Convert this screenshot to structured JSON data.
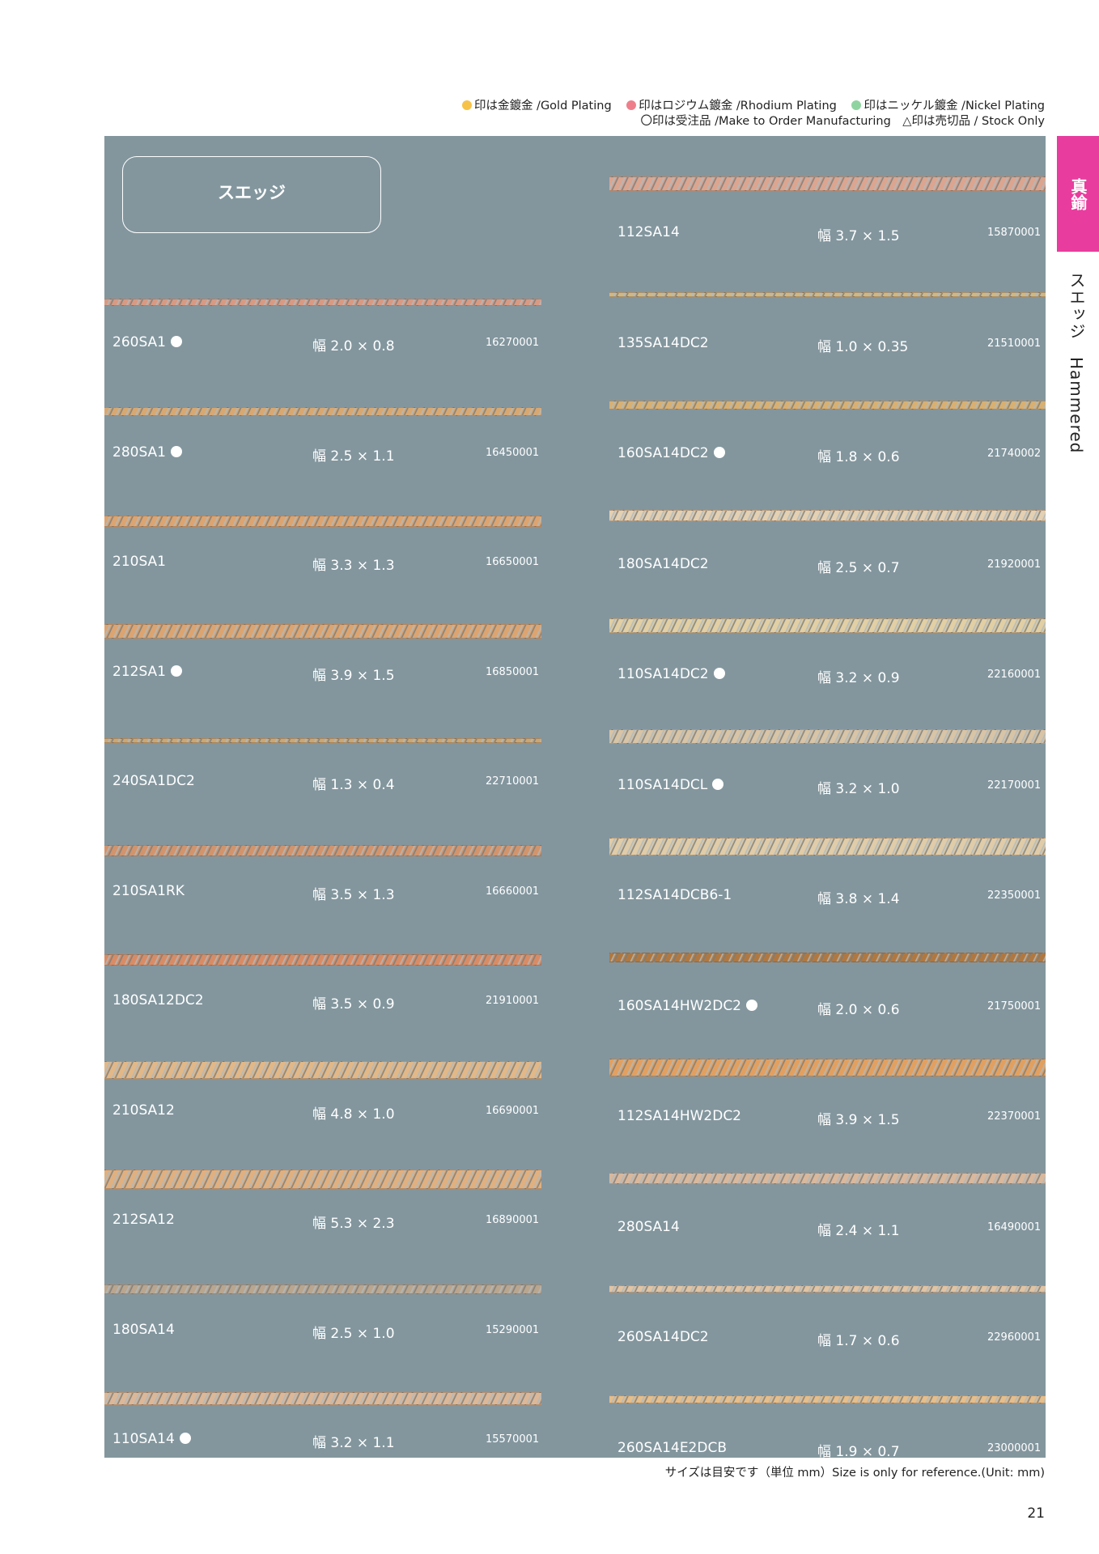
{
  "legend": {
    "line1": [
      {
        "color": "#f6c248",
        "text": "印は金鍍金 /Gold Plating"
      },
      {
        "color": "#ee7f8a",
        "text": "印はロジウム鍍金 /Rhodium Plating"
      },
      {
        "color": "#8fd4a0",
        "text": "印はニッケル鍍金 /Nickel Plating"
      }
    ],
    "line2": "〇印は受注品 /Make to Order Manufacturing　△印は売切品 / Stock Only"
  },
  "section_title": "スエッジ",
  "side_tab": "真鍮",
  "side_label": "スエッジ　Hammered",
  "left_column": [
    {
      "name": "260SA1",
      "dot": true,
      "size": "幅 2.0 × 0.8",
      "code": "16270001",
      "color": "#d89a83",
      "thickness": 9
    },
    {
      "name": "280SA1",
      "dot": true,
      "size": "幅 2.5 × 1.1",
      "code": "16450001",
      "color": "#d8a872",
      "thickness": 11
    },
    {
      "name": "210SA1",
      "dot": false,
      "size": "幅 3.3 × 1.3",
      "code": "16650001",
      "color": "#dca470",
      "thickness": 14
    },
    {
      "name": "212SA1",
      "dot": true,
      "size": "幅 3.9 × 1.5",
      "code": "16850001",
      "color": "#dca470",
      "thickness": 18
    },
    {
      "name": "240SA1DC2",
      "dot": false,
      "size": "幅 1.3 × 0.4",
      "code": "22710001",
      "color": "#c8a878",
      "thickness": 6
    },
    {
      "name": "210SA1RK",
      "dot": false,
      "size": "幅 3.5 × 1.3",
      "code": "16660001",
      "color": "#d2946c",
      "thickness": 14
    },
    {
      "name": "180SA12DC2",
      "dot": false,
      "size": "幅 3.5 × 0.9",
      "code": "21910001",
      "color": "#d88c66",
      "thickness": 14
    },
    {
      "name": "210SA12",
      "dot": false,
      "size": "幅 4.8 × 1.0",
      "code": "16690001",
      "color": "#e2b888",
      "thickness": 22
    },
    {
      "name": "212SA12",
      "dot": false,
      "size": "幅 5.3 × 2.3",
      "code": "16890001",
      "color": "#e0b080",
      "thickness": 24
    },
    {
      "name": "180SA14",
      "dot": false,
      "size": "幅 2.5 × 1.0",
      "code": "15290001",
      "color": "#baa58e",
      "thickness": 12
    },
    {
      "name": "110SA14",
      "dot": true,
      "size": "幅 3.2 × 1.1",
      "code": "15570001",
      "color": "#dcb898",
      "thickness": 16
    }
  ],
  "right_column": [
    {
      "name": "112SA14",
      "dot": false,
      "size": "幅 3.7 × 1.5",
      "code": "15870001",
      "color": "#dba590",
      "thickness": 18
    },
    {
      "name": "135SA14DC2",
      "dot": false,
      "size": "幅 1.0 × 0.35",
      "code": "21510001",
      "color": "#cdb888",
      "thickness": 6
    },
    {
      "name": "160SA14DC2",
      "dot": true,
      "size": "幅 1.8 × 0.6",
      "code": "21740002",
      "color": "#d8b072",
      "thickness": 11
    },
    {
      "name": "180SA14DC2",
      "dot": false,
      "size": "幅 2.5 × 0.7",
      "code": "21920001",
      "color": "#e4d0b2",
      "thickness": 14
    },
    {
      "name": "110SA14DC2",
      "dot": true,
      "size": "幅 3.2 × 0.9",
      "code": "22160001",
      "color": "#e2cfa4",
      "thickness": 18
    },
    {
      "name": "110SA14DCL",
      "dot": true,
      "size": "幅 3.2 × 1.0",
      "code": "22170001",
      "color": "#d8c4a6",
      "thickness": 18
    },
    {
      "name": "112SA14DCB6-1",
      "dot": false,
      "size": "幅 3.8 × 1.4",
      "code": "22350001",
      "color": "#e0cca8",
      "thickness": 22
    },
    {
      "name": "160SA14HW2DC2",
      "dot": true,
      "size": "幅 2.0 × 0.6",
      "code": "21750001",
      "color": "#b07840",
      "thickness": 12
    },
    {
      "name": "112SA14HW2DC2",
      "dot": false,
      "size": "幅 3.9 × 1.5",
      "code": "22370001",
      "color": "#e2a060",
      "thickness": 22
    },
    {
      "name": "280SA14",
      "dot": false,
      "size": "幅 2.4 × 1.1",
      "code": "16490001",
      "color": "#dab89c",
      "thickness": 14
    },
    {
      "name": "260SA14DC2",
      "dot": false,
      "size": "幅 1.7 × 0.6",
      "code": "22960001",
      "color": "#e0c4a4",
      "thickness": 9
    },
    {
      "name": "260SA14E2DCB",
      "dot": false,
      "size": "幅 1.9 × 0.7",
      "code": "23000001",
      "color": "#e4be8c",
      "thickness": 10
    }
  ],
  "footnote": "サイズは目安です（単位 mm）Size is only for reference.(Unit: mm)",
  "page_number": "21"
}
